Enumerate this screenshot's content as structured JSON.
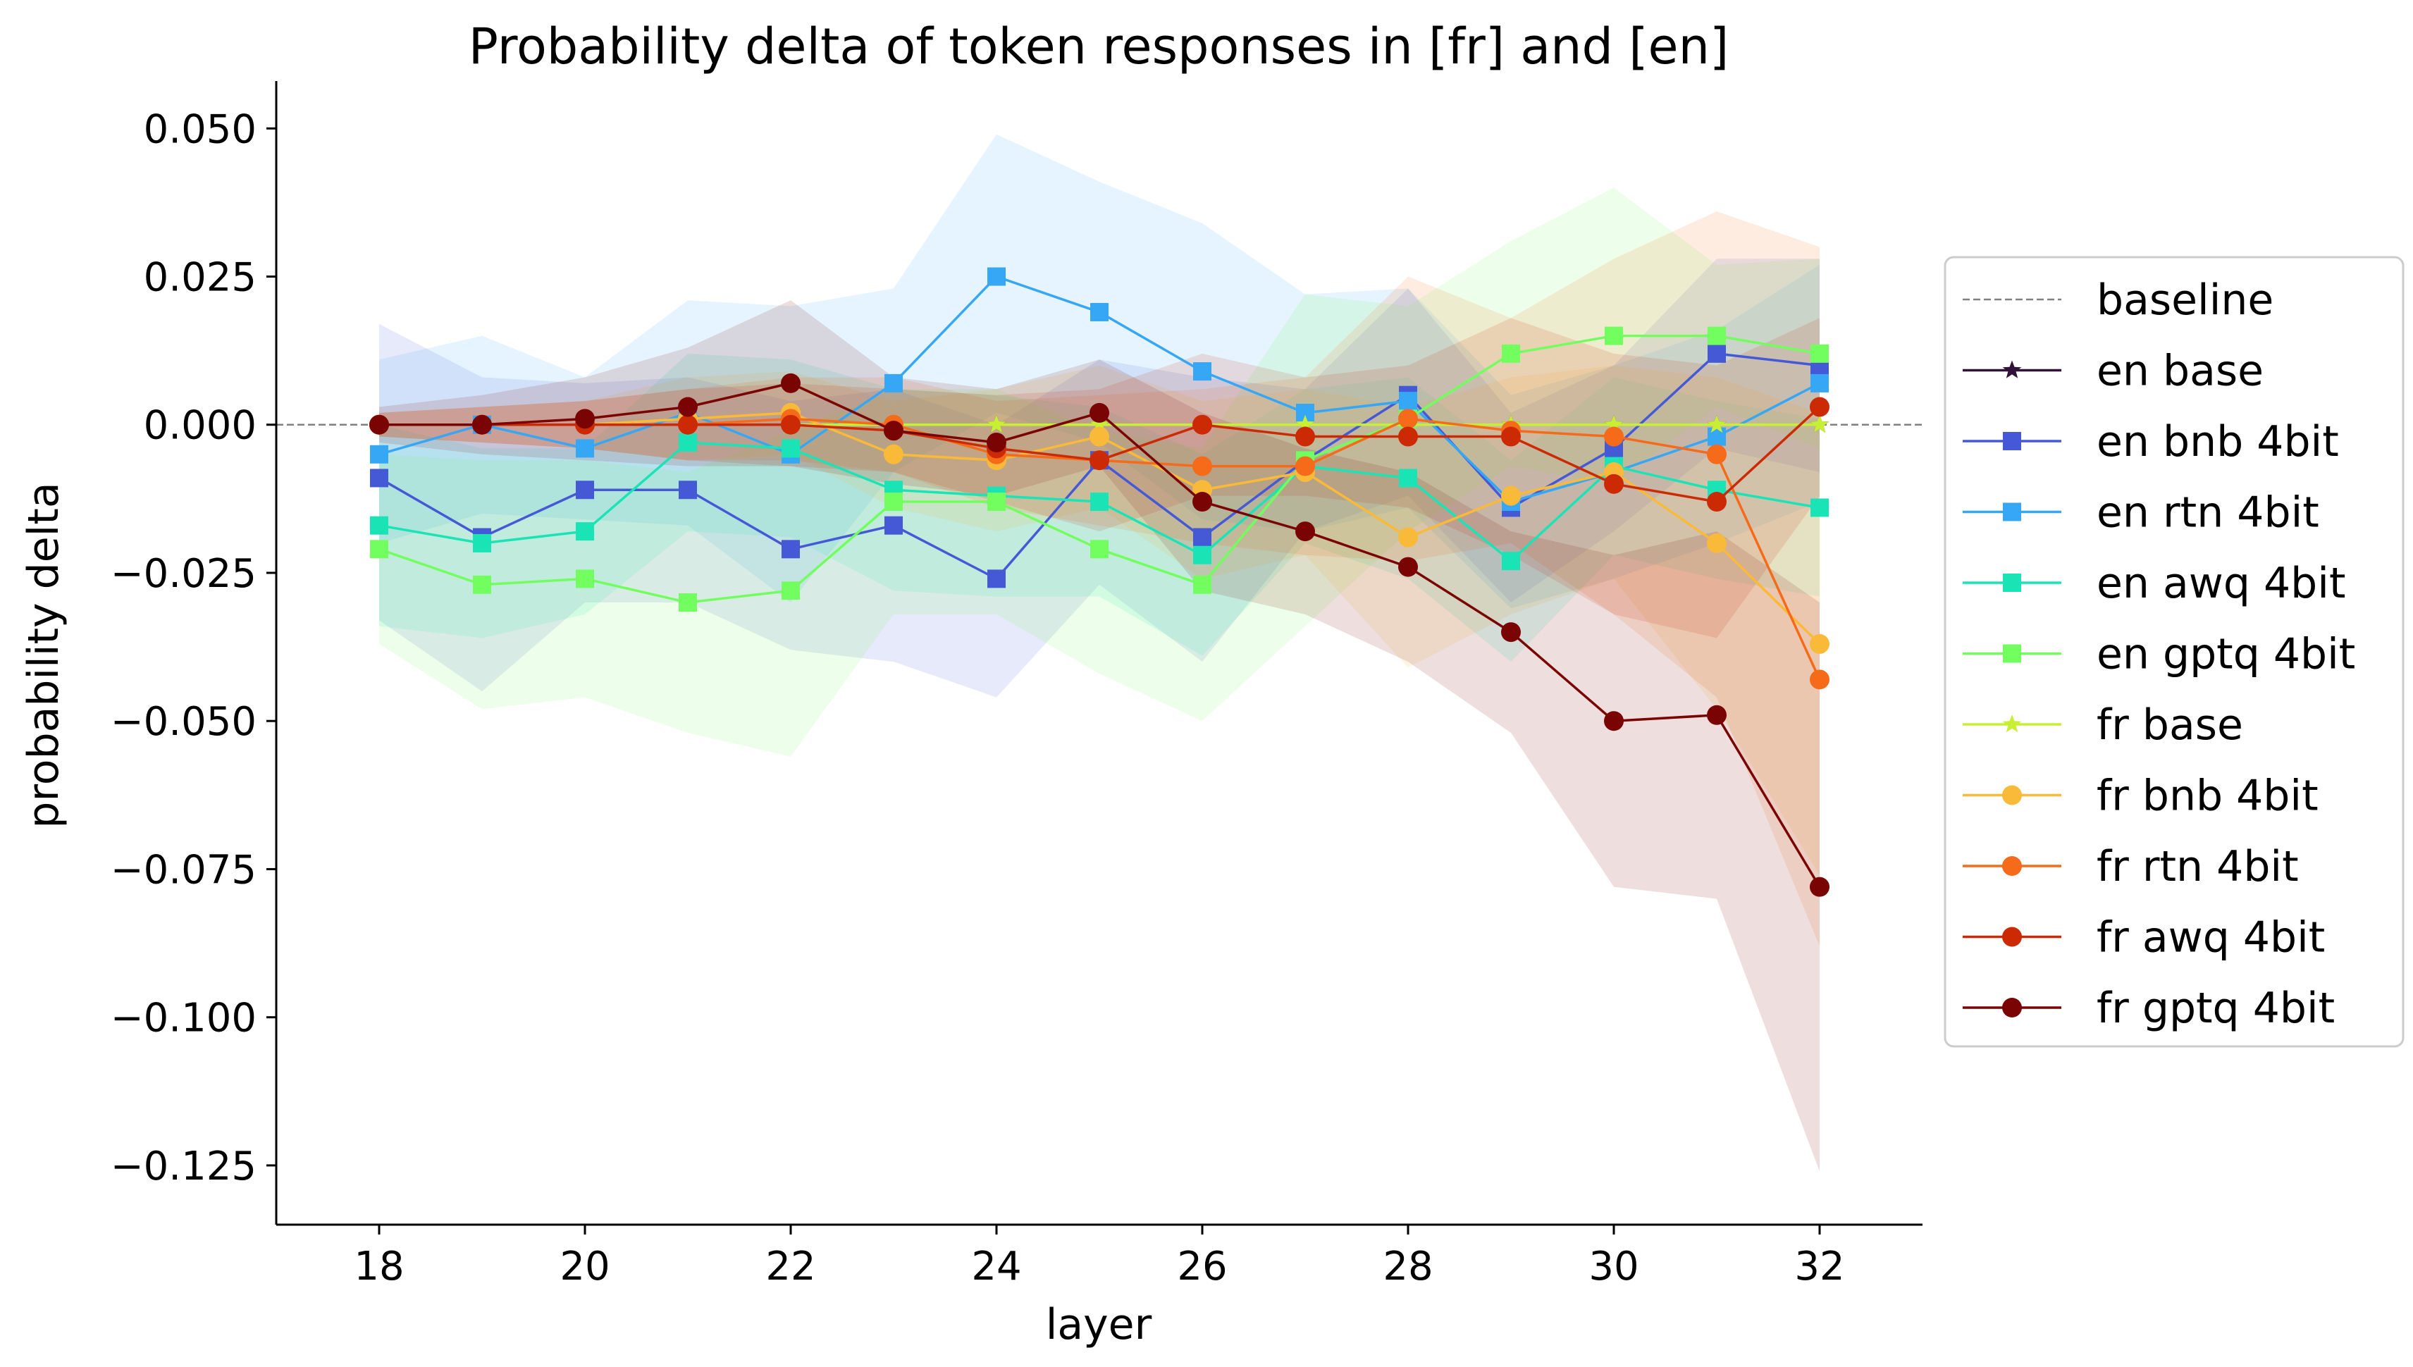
{
  "chart_data": {
    "type": "line",
    "title": "Probability delta of token responses in [fr] and [en]",
    "xlabel": "layer",
    "ylabel": "probability delta",
    "xlim": [
      17,
      33
    ],
    "ylim": [
      -0.135,
      0.058
    ],
    "xticks": [
      18,
      20,
      22,
      24,
      26,
      28,
      30,
      32
    ],
    "yticks": [
      0.05,
      0.025,
      0.0,
      -0.025,
      -0.05,
      -0.075,
      -0.1,
      -0.125
    ],
    "xtick_labels": [
      "18",
      "20",
      "22",
      "24",
      "26",
      "28",
      "30",
      "32"
    ],
    "ytick_labels": [
      "0.050",
      "0.025",
      "0.000",
      "−0.025",
      "−0.050",
      "−0.075",
      "−0.100",
      "−0.125"
    ],
    "grid": false,
    "legend_position": "right, outside plot",
    "x": [
      18,
      19,
      20,
      21,
      22,
      23,
      24,
      25,
      26,
      27,
      28,
      29,
      30,
      31,
      32
    ],
    "baseline": {
      "name": "baseline",
      "value": 0.0,
      "color": "#808080"
    },
    "series": [
      {
        "name": "en base",
        "color": "#30123b",
        "marker": "star",
        "values": [
          0,
          0,
          0,
          0,
          0,
          0,
          0,
          0,
          0,
          0,
          0,
          0,
          0,
          0,
          0
        ]
      },
      {
        "name": "en bnb 4bit",
        "color": "#4559d6",
        "marker": "square",
        "values": [
          -0.009,
          -0.019,
          -0.011,
          -0.011,
          -0.021,
          -0.017,
          -0.026,
          -0.006,
          -0.019,
          -0.006,
          0.005,
          -0.014,
          -0.004,
          0.012,
          0.01
        ],
        "band_upper": [
          0.017,
          0.008,
          0.007,
          0.008,
          0.004,
          0.006,
          0.0,
          0.011,
          0.008,
          0.006,
          0.023,
          0.002,
          0.01,
          0.028,
          0.028
        ],
        "band_lower": [
          -0.033,
          -0.045,
          -0.03,
          -0.03,
          -0.038,
          -0.04,
          -0.046,
          -0.027,
          -0.04,
          -0.018,
          -0.012,
          -0.03,
          -0.018,
          -0.004,
          -0.008
        ]
      },
      {
        "name": "en rtn 4bit",
        "color": "#36a7f5",
        "marker": "square",
        "values": [
          -0.005,
          0.0,
          -0.004,
          0.002,
          -0.005,
          0.007,
          0.025,
          0.019,
          0.009,
          0.002,
          0.004,
          -0.013,
          -0.008,
          -0.002,
          0.007
        ],
        "band_upper": [
          0.011,
          0.015,
          0.008,
          0.021,
          0.02,
          0.023,
          0.049,
          0.041,
          0.034,
          0.022,
          0.023,
          0.005,
          0.01,
          0.016,
          0.027
        ],
        "band_lower": [
          -0.02,
          -0.015,
          -0.016,
          -0.017,
          -0.03,
          -0.008,
          0.002,
          -0.003,
          -0.016,
          -0.018,
          -0.014,
          -0.031,
          -0.026,
          -0.02,
          -0.013
        ]
      },
      {
        "name": "en awq 4bit",
        "color": "#1ae4b6",
        "marker": "square",
        "values": [
          -0.017,
          -0.02,
          -0.018,
          -0.003,
          -0.004,
          -0.011,
          -0.012,
          -0.013,
          -0.022,
          -0.007,
          -0.009,
          -0.023,
          -0.007,
          -0.011,
          -0.014
        ],
        "band_upper": [
          0.0,
          -0.004,
          -0.004,
          0.012,
          0.011,
          0.006,
          0.005,
          0.003,
          -0.005,
          0.006,
          0.008,
          -0.006,
          0.008,
          0.004,
          0.001
        ],
        "band_lower": [
          -0.034,
          -0.036,
          -0.032,
          -0.018,
          -0.019,
          -0.028,
          -0.029,
          -0.029,
          -0.039,
          -0.02,
          -0.026,
          -0.04,
          -0.022,
          -0.026,
          -0.029
        ]
      },
      {
        "name": "en gptq 4bit",
        "color": "#72fe5e",
        "marker": "square",
        "values": [
          -0.021,
          -0.027,
          -0.026,
          -0.03,
          -0.028,
          -0.013,
          -0.013,
          -0.021,
          -0.027,
          -0.006,
          0.001,
          0.012,
          0.015,
          0.015,
          0.012
        ],
        "band_upper": [
          -0.005,
          -0.006,
          -0.006,
          -0.008,
          -0.001,
          0.006,
          0.006,
          -0.001,
          -0.004,
          0.022,
          0.02,
          0.031,
          0.04,
          0.027,
          0.028
        ],
        "band_lower": [
          -0.037,
          -0.048,
          -0.046,
          -0.052,
          -0.056,
          -0.032,
          -0.032,
          -0.042,
          -0.05,
          -0.034,
          -0.018,
          -0.007,
          -0.01,
          0.003,
          -0.004
        ]
      },
      {
        "name": "fr base",
        "color": "#c7ef34",
        "marker": "star",
        "values": [
          0,
          0,
          0,
          0,
          0,
          0,
          0,
          0,
          0,
          0,
          0,
          0,
          0,
          0,
          0
        ]
      },
      {
        "name": "fr bnb 4bit",
        "color": "#faba39",
        "marker": "circle",
        "values": [
          0.0,
          0.0,
          0.0,
          0.001,
          0.002,
          -0.005,
          -0.006,
          -0.002,
          -0.011,
          -0.008,
          -0.019,
          -0.012,
          -0.008,
          -0.02,
          -0.037
        ],
        "band_upper": [
          0.002,
          0.003,
          0.004,
          0.008,
          0.009,
          0.004,
          0.006,
          0.01,
          0.004,
          0.006,
          0.003,
          0.008,
          0.01,
          0.008,
          0.002
        ],
        "band_lower": [
          -0.002,
          -0.003,
          -0.004,
          -0.006,
          -0.005,
          -0.014,
          -0.018,
          -0.014,
          -0.026,
          -0.022,
          -0.041,
          -0.032,
          -0.026,
          -0.048,
          -0.076
        ]
      },
      {
        "name": "fr rtn 4bit",
        "color": "#f66b19",
        "marker": "circle",
        "values": [
          0.0,
          0.0,
          0.0,
          0.0,
          0.001,
          0.0,
          -0.005,
          -0.006,
          -0.007,
          -0.007,
          0.001,
          -0.001,
          -0.002,
          -0.005,
          -0.043
        ],
        "band_upper": [
          0.002,
          0.003,
          0.004,
          0.006,
          0.008,
          0.008,
          0.004,
          0.005,
          0.006,
          0.008,
          0.025,
          0.018,
          0.028,
          0.036,
          0.03
        ],
        "band_lower": [
          -0.002,
          -0.003,
          -0.004,
          -0.006,
          -0.006,
          -0.008,
          -0.014,
          -0.017,
          -0.02,
          -0.022,
          -0.023,
          -0.02,
          -0.032,
          -0.046,
          -0.088
        ]
      },
      {
        "name": "fr awq 4bit",
        "color": "#cb2a04",
        "marker": "circle",
        "values": [
          0.0,
          0.0,
          0.0,
          0.0,
          0.0,
          -0.001,
          -0.004,
          -0.006,
          0.0,
          -0.002,
          -0.002,
          -0.002,
          -0.01,
          -0.013,
          0.003
        ],
        "band_upper": [
          0.002,
          0.003,
          0.004,
          0.006,
          0.007,
          0.006,
          0.005,
          0.006,
          0.012,
          0.008,
          0.01,
          0.018,
          0.012,
          0.01,
          0.018
        ],
        "band_lower": [
          -0.002,
          -0.003,
          -0.004,
          -0.006,
          -0.007,
          -0.008,
          -0.013,
          -0.018,
          -0.012,
          -0.012,
          -0.014,
          -0.022,
          -0.032,
          -0.036,
          -0.012
        ]
      },
      {
        "name": "fr gptq 4bit",
        "color": "#7a0403",
        "marker": "circle",
        "values": [
          0.0,
          0.0,
          0.001,
          0.003,
          0.007,
          -0.001,
          -0.003,
          0.002,
          -0.013,
          -0.018,
          -0.024,
          -0.035,
          -0.05,
          -0.049,
          -0.078
        ],
        "band_upper": [
          0.003,
          0.005,
          0.008,
          0.013,
          0.021,
          0.008,
          0.006,
          0.011,
          0.002,
          -0.004,
          -0.008,
          -0.018,
          -0.022,
          -0.018,
          -0.03
        ],
        "band_lower": [
          -0.003,
          -0.005,
          -0.006,
          -0.007,
          -0.007,
          -0.01,
          -0.012,
          -0.007,
          -0.028,
          -0.032,
          -0.04,
          -0.052,
          -0.078,
          -0.08,
          -0.126
        ]
      }
    ],
    "legend": [
      "baseline",
      "en base",
      "en bnb 4bit",
      "en rtn 4bit",
      "en awq 4bit",
      "en gptq 4bit",
      "fr base",
      "fr bnb 4bit",
      "fr rtn 4bit",
      "fr awq 4bit",
      "fr gptq 4bit"
    ]
  }
}
